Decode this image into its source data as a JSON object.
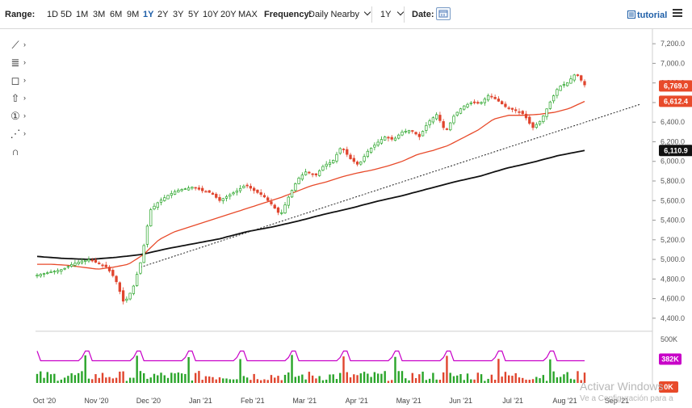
{
  "toolbar": {
    "range_label": "Range:",
    "ranges": [
      "1D",
      "5D",
      "1M",
      "3M",
      "6M",
      "9M",
      "1Y",
      "2Y",
      "3Y",
      "5Y",
      "10Y",
      "20Y",
      "MAX"
    ],
    "active_range": "1Y",
    "frequency_label": "Frequency:",
    "frequency_value": "Daily Nearby",
    "period_value": "1Y",
    "date_label": "Date:",
    "tutorial_label": "tutorial"
  },
  "tools": [
    {
      "icon": "line-draw-icon",
      "glyph": "⟋"
    },
    {
      "icon": "fibonacci-icon",
      "glyph": "≣"
    },
    {
      "icon": "shape-rectangle-icon",
      "glyph": "◻"
    },
    {
      "icon": "arrow-up-icon",
      "glyph": "⇧"
    },
    {
      "icon": "number-one-icon",
      "glyph": "①"
    },
    {
      "icon": "pattern-icon",
      "glyph": "⋰"
    },
    {
      "icon": "magnet-icon",
      "glyph": "∩"
    }
  ],
  "watermark": {
    "line1": "Activar Windows",
    "line2": "Ve a Configuración para a"
  },
  "colors": {
    "up": "#2aa52a",
    "down": "#e0452e",
    "ma50": "#e84a2a",
    "ma200": "#111111",
    "trend": "#222222",
    "volume_ma": "#c800c8"
  },
  "chart_data": {
    "type": "candlestick",
    "x_ticks": [
      "Oct '20",
      "Nov '20",
      "Dec '20",
      "Jan '21",
      "Feb '21",
      "Mar '21",
      "Apr '21",
      "May '21",
      "Jun '21",
      "Jul '21",
      "Aug '21",
      "Sep '21"
    ],
    "y_ticks": [
      "7,200.0",
      "7,000.0",
      "6,800.0",
      "6,600.0",
      "6,400.0",
      "6,200.0",
      "6,000.0",
      "5,800.0",
      "5,600.0",
      "5,400.0",
      "5,200.0",
      "5,000.0",
      "4,800.0",
      "4,600.0",
      "4,400.0"
    ],
    "ylim": [
      4300,
      7300
    ],
    "badges": [
      {
        "label": "6,769.0",
        "value": 6769,
        "color": "#e84a2a"
      },
      {
        "label": "6,612.4",
        "value": 6612.4,
        "color": "#e84a2a"
      },
      {
        "label": "6,110.9",
        "value": 6110.9,
        "color": "#111111"
      }
    ],
    "price_anchors": [
      4840,
      4860,
      4880,
      4900,
      4950,
      4980,
      5000,
      4960,
      4920,
      4800,
      4550,
      4700,
      5000,
      5500,
      5590,
      5650,
      5700,
      5720,
      5740,
      5700,
      5680,
      5600,
      5650,
      5700,
      5760,
      5700,
      5650,
      5560,
      5450,
      5650,
      5820,
      5900,
      5850,
      5960,
      6000,
      6150,
      6030,
      5960,
      6100,
      6180,
      6250,
      6220,
      6300,
      6320,
      6250,
      6400,
      6480,
      6300,
      6470,
      6560,
      6600,
      6590,
      6680,
      6620,
      6550,
      6520,
      6480,
      6340,
      6420,
      6600,
      6760,
      6800,
      6900,
      6780
    ],
    "ma50_anchors": [
      4950,
      4950,
      4940,
      4920,
      4900,
      4920,
      4950,
      5050,
      5200,
      5280,
      5330,
      5380,
      5430,
      5480,
      5530,
      5580,
      5630,
      5690,
      5750,
      5790,
      5840,
      5880,
      5910,
      5950,
      6000,
      6070,
      6110,
      6160,
      6240,
      6320,
      6430,
      6470,
      6470,
      6480,
      6500,
      6540,
      6612
    ],
    "ma200_anchors": [
      5030,
      5010,
      5000,
      5020,
      5050,
      5110,
      5160,
      5210,
      5280,
      5330,
      5390,
      5460,
      5520,
      5590,
      5650,
      5720,
      5790,
      5850,
      5930,
      5990,
      6060,
      6111
    ],
    "trendline": [
      [
        4920,
        -1
      ],
      [
        6580,
        62
      ]
    ],
    "volume_axis": [
      "500K",
      "0K"
    ],
    "volume_badge": "382K",
    "volume_spike_every": 15
  }
}
